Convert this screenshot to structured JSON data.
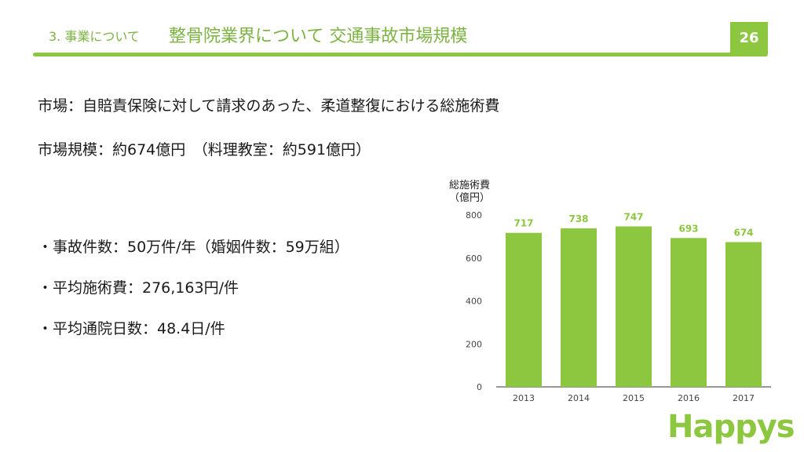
{
  "header": {
    "section": "3. 事業について",
    "title": "整骨院業界について 交通事故市場規模",
    "page_number": "26"
  },
  "body": {
    "market": "市場：自賠責保険に対して請求のあった、柔道整復における総施術費",
    "market_size": "市場規模：約674億円　（料理教室：約591億円）",
    "bullets": [
      "・事故件数：50万件/年（婚姻件数：59万組）",
      "・平均施術費：276,163円/件",
      "・平均通院日数：48.4日/件"
    ]
  },
  "chart_data": {
    "type": "bar",
    "ylabel": [
      "総施術費",
      "（億円）"
    ],
    "categories": [
      "2013",
      "2014",
      "2015",
      "2016",
      "2017"
    ],
    "values": [
      717,
      738,
      747,
      693,
      674
    ],
    "ylim": [
      0,
      800
    ],
    "yticks": [
      0,
      200,
      400,
      600,
      800
    ],
    "bar_color": "#8dc63f",
    "label_color": "#8dc63f",
    "grid": false
  },
  "logo": {
    "text": "Happys"
  },
  "colors": {
    "accent": "#8dc63f"
  }
}
